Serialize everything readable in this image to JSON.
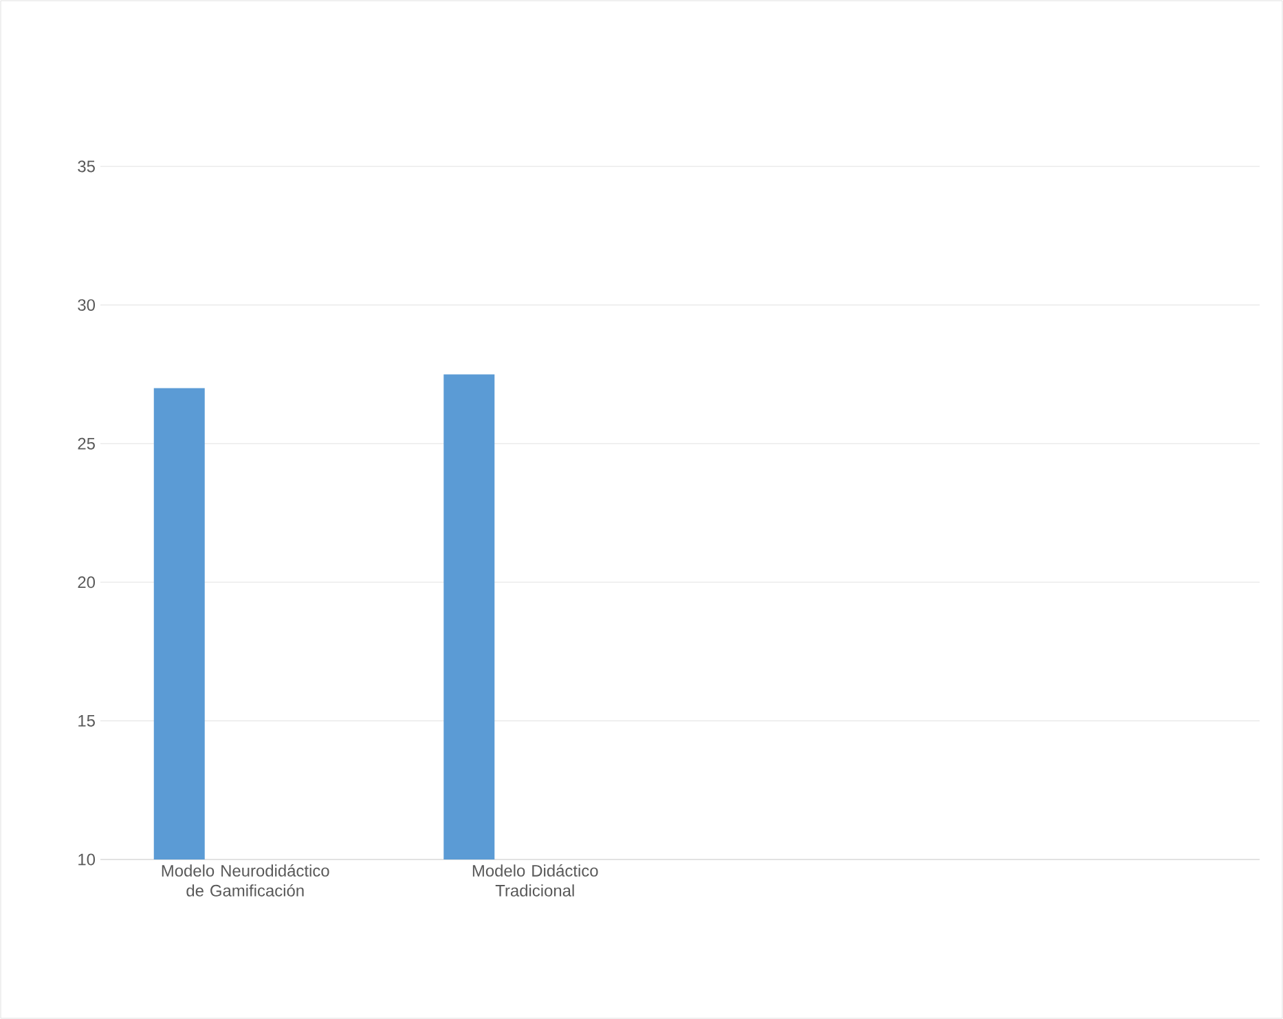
{
  "chart_data": {
    "type": "bar",
    "categories": [
      "Modelo Neurodidáctico de Gamificación",
      "Modelo Didáctico Tradicional",
      null,
      null
    ],
    "values": [
      27,
      27.5,
      null,
      null
    ],
    "color": "#5b9bd5",
    "ylim": [
      10,
      35
    ],
    "yticks": [
      10,
      15,
      20,
      25,
      30,
      35
    ],
    "grid": "y"
  }
}
